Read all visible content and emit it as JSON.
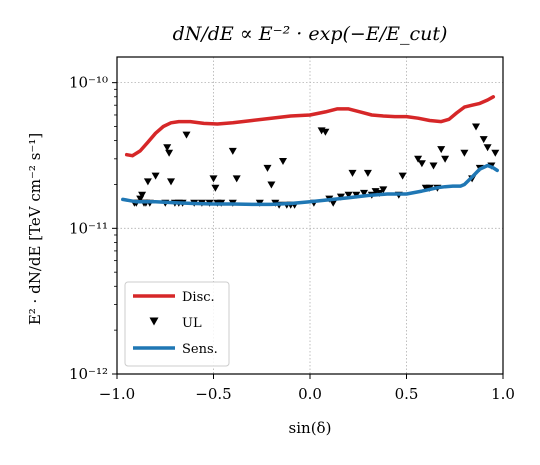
{
  "chart_data": {
    "type": "line",
    "title": "dN/dE ∝ E⁻² · exp(−E/E_cut)",
    "xlabel": "sin(δ)",
    "ylabel": "E² · dN/dE  [TeV cm⁻² s⁻¹]",
    "xlim": [
      -1.0,
      1.0
    ],
    "ylim": [
      1e-12,
      1.5e-10
    ],
    "yscale": "log",
    "grid": true,
    "legend_position": "lower-left",
    "x_ticks": [
      {
        "value": -1.0,
        "label": "−1.0"
      },
      {
        "value": -0.5,
        "label": "−0.5"
      },
      {
        "value": 0.0,
        "label": "0.0"
      },
      {
        "value": 0.5,
        "label": "0.5"
      },
      {
        "value": 1.0,
        "label": "1.0"
      }
    ],
    "y_ticks": [
      {
        "value": 1e-12,
        "label": "10⁻¹²"
      },
      {
        "value": 1e-11,
        "label": "10⁻¹¹"
      },
      {
        "value": 1e-10,
        "label": "10⁻¹⁰"
      }
    ],
    "series": [
      {
        "name": "Disc.",
        "style": "line",
        "color": "#d62728",
        "x": [
          -0.95,
          -0.92,
          -0.88,
          -0.84,
          -0.8,
          -0.76,
          -0.72,
          -0.68,
          -0.62,
          -0.55,
          -0.48,
          -0.4,
          -0.3,
          -0.2,
          -0.1,
          0.0,
          0.08,
          0.14,
          0.2,
          0.26,
          0.32,
          0.38,
          0.44,
          0.5,
          0.56,
          0.62,
          0.68,
          0.72,
          0.76,
          0.8,
          0.84,
          0.88,
          0.92,
          0.95
        ],
        "y": [
          3.2e-11,
          3.15e-11,
          3.4e-11,
          3.9e-11,
          4.5e-11,
          5e-11,
          5.3e-11,
          5.4e-11,
          5.4e-11,
          5.25e-11,
          5.2e-11,
          5.3e-11,
          5.5e-11,
          5.7e-11,
          5.9e-11,
          6e-11,
          6.3e-11,
          6.6e-11,
          6.6e-11,
          6.3e-11,
          6e-11,
          5.9e-11,
          5.85e-11,
          5.85e-11,
          5.7e-11,
          5.5e-11,
          5.4e-11,
          5.6e-11,
          6.2e-11,
          6.8e-11,
          7e-11,
          7.2e-11,
          7.6e-11,
          8e-11
        ]
      },
      {
        "name": "UL",
        "style": "marker",
        "color": "#000000",
        "x": [
          -0.91,
          -0.9,
          -0.88,
          -0.87,
          -0.86,
          -0.85,
          -0.84,
          -0.83,
          -0.8,
          -0.75,
          -0.74,
          -0.73,
          -0.72,
          -0.7,
          -0.68,
          -0.66,
          -0.64,
          -0.6,
          -0.56,
          -0.52,
          -0.5,
          -0.49,
          -0.48,
          -0.46,
          -0.4,
          -0.4,
          -0.38,
          -0.26,
          -0.22,
          -0.2,
          -0.18,
          -0.16,
          -0.14,
          -0.12,
          -0.1,
          -0.08,
          0.02,
          0.06,
          0.08,
          0.1,
          0.12,
          0.16,
          0.2,
          0.22,
          0.24,
          0.28,
          0.3,
          0.32,
          0.34,
          0.36,
          0.38,
          0.46,
          0.48,
          0.56,
          0.58,
          0.6,
          0.62,
          0.64,
          0.66,
          0.68,
          0.7,
          0.8,
          0.84,
          0.86,
          0.88,
          0.9,
          0.92,
          0.94,
          0.96
        ],
        "y": [
          1.5e-11,
          1.5e-11,
          1.6e-11,
          1.7e-11,
          1.5e-11,
          1.5e-11,
          2.1e-11,
          1.5e-11,
          2.3e-11,
          1.5e-11,
          3.6e-11,
          3.3e-11,
          2.1e-11,
          1.5e-11,
          1.5e-11,
          1.5e-11,
          4.4e-11,
          1.5e-11,
          1.5e-11,
          1.5e-11,
          2.2e-11,
          1.9e-11,
          1.5e-11,
          1.5e-11,
          3.4e-11,
          1.5e-11,
          2.2e-11,
          1.5e-11,
          2.6e-11,
          2e-11,
          1.5e-11,
          1.45e-11,
          2.9e-11,
          1.45e-11,
          1.45e-11,
          1.45e-11,
          1.5e-11,
          4.7e-11,
          4.6e-11,
          1.6e-11,
          1.5e-11,
          1.65e-11,
          1.7e-11,
          2.4e-11,
          1.7e-11,
          1.75e-11,
          2.4e-11,
          1.7e-11,
          1.8e-11,
          1.75e-11,
          1.85e-11,
          1.7e-11,
          2.3e-11,
          3e-11,
          2.8e-11,
          1.9e-11,
          1.9e-11,
          2.7e-11,
          1.9e-11,
          3.5e-11,
          3e-11,
          3.3e-11,
          2.2e-11,
          5e-11,
          2.6e-11,
          4.1e-11,
          3.6e-11,
          2.7e-11,
          3.3e-11
        ]
      },
      {
        "name": "Sens.",
        "style": "line",
        "color": "#1f77b4",
        "x": [
          -0.97,
          -0.9,
          -0.8,
          -0.7,
          -0.6,
          -0.5,
          -0.4,
          -0.3,
          -0.2,
          -0.1,
          0.0,
          0.1,
          0.2,
          0.3,
          0.4,
          0.5,
          0.58,
          0.62,
          0.66,
          0.7,
          0.74,
          0.78,
          0.8,
          0.84,
          0.88,
          0.92,
          0.95,
          0.97
        ],
        "y": [
          1.58e-11,
          1.52e-11,
          1.52e-11,
          1.5e-11,
          1.48e-11,
          1.47e-11,
          1.47e-11,
          1.46e-11,
          1.46e-11,
          1.48e-11,
          1.52e-11,
          1.57e-11,
          1.62e-11,
          1.68e-11,
          1.72e-11,
          1.72e-11,
          1.8e-11,
          1.85e-11,
          1.9e-11,
          1.93e-11,
          1.95e-11,
          1.95e-11,
          2e-11,
          2.25e-11,
          2.55e-11,
          2.7e-11,
          2.6e-11,
          2.5e-11
        ]
      }
    ]
  }
}
